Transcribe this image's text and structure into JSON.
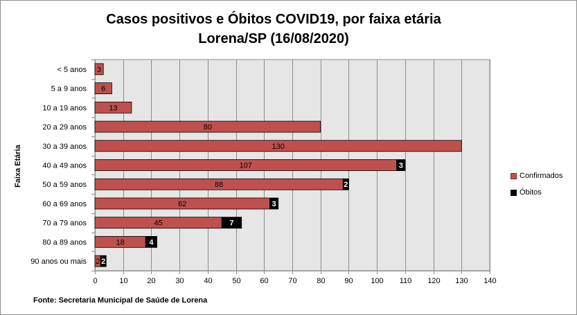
{
  "chart_data": {
    "type": "bar",
    "orientation": "horizontal",
    "stacked": true,
    "title": [
      "Casos positivos e Óbitos COVID19, por faixa etária",
      "Lorena/SP (16/08/2020)"
    ],
    "xlabel": "",
    "ylabel": "Faixa Etária",
    "xlim": [
      0,
      140
    ],
    "xticks": [
      0,
      10,
      20,
      30,
      40,
      50,
      60,
      70,
      80,
      90,
      100,
      110,
      120,
      130,
      140
    ],
    "grid": true,
    "legend_position": "right",
    "categories": [
      "< 5 anos",
      "5 a 9 anos",
      "10 a 19 anos",
      "20 a 29 anos",
      "30 a 39 anos",
      "40 a 49 anos",
      "50 a 59 anos",
      "60 a 69 anos",
      "70 a 79 anos",
      "80 a 89 anos",
      "90 anos ou mais"
    ],
    "series": [
      {
        "name": "Confirmados",
        "color": "#c0504d",
        "values": [
          3,
          6,
          13,
          80,
          130,
          107,
          88,
          62,
          45,
          18,
          2
        ]
      },
      {
        "name": "Óbitos",
        "color": "#000000",
        "values": [
          0,
          0,
          0,
          0,
          0,
          3,
          2,
          3,
          7,
          4,
          2
        ]
      }
    ],
    "source": "Fonte: Secretaria Municipal  de Saúde de Lorena"
  },
  "colors": {
    "plot_bg": "#e6e6e6",
    "grid": "#8c8c8c",
    "confirmed": "#c0504d",
    "deaths": "#000000"
  }
}
